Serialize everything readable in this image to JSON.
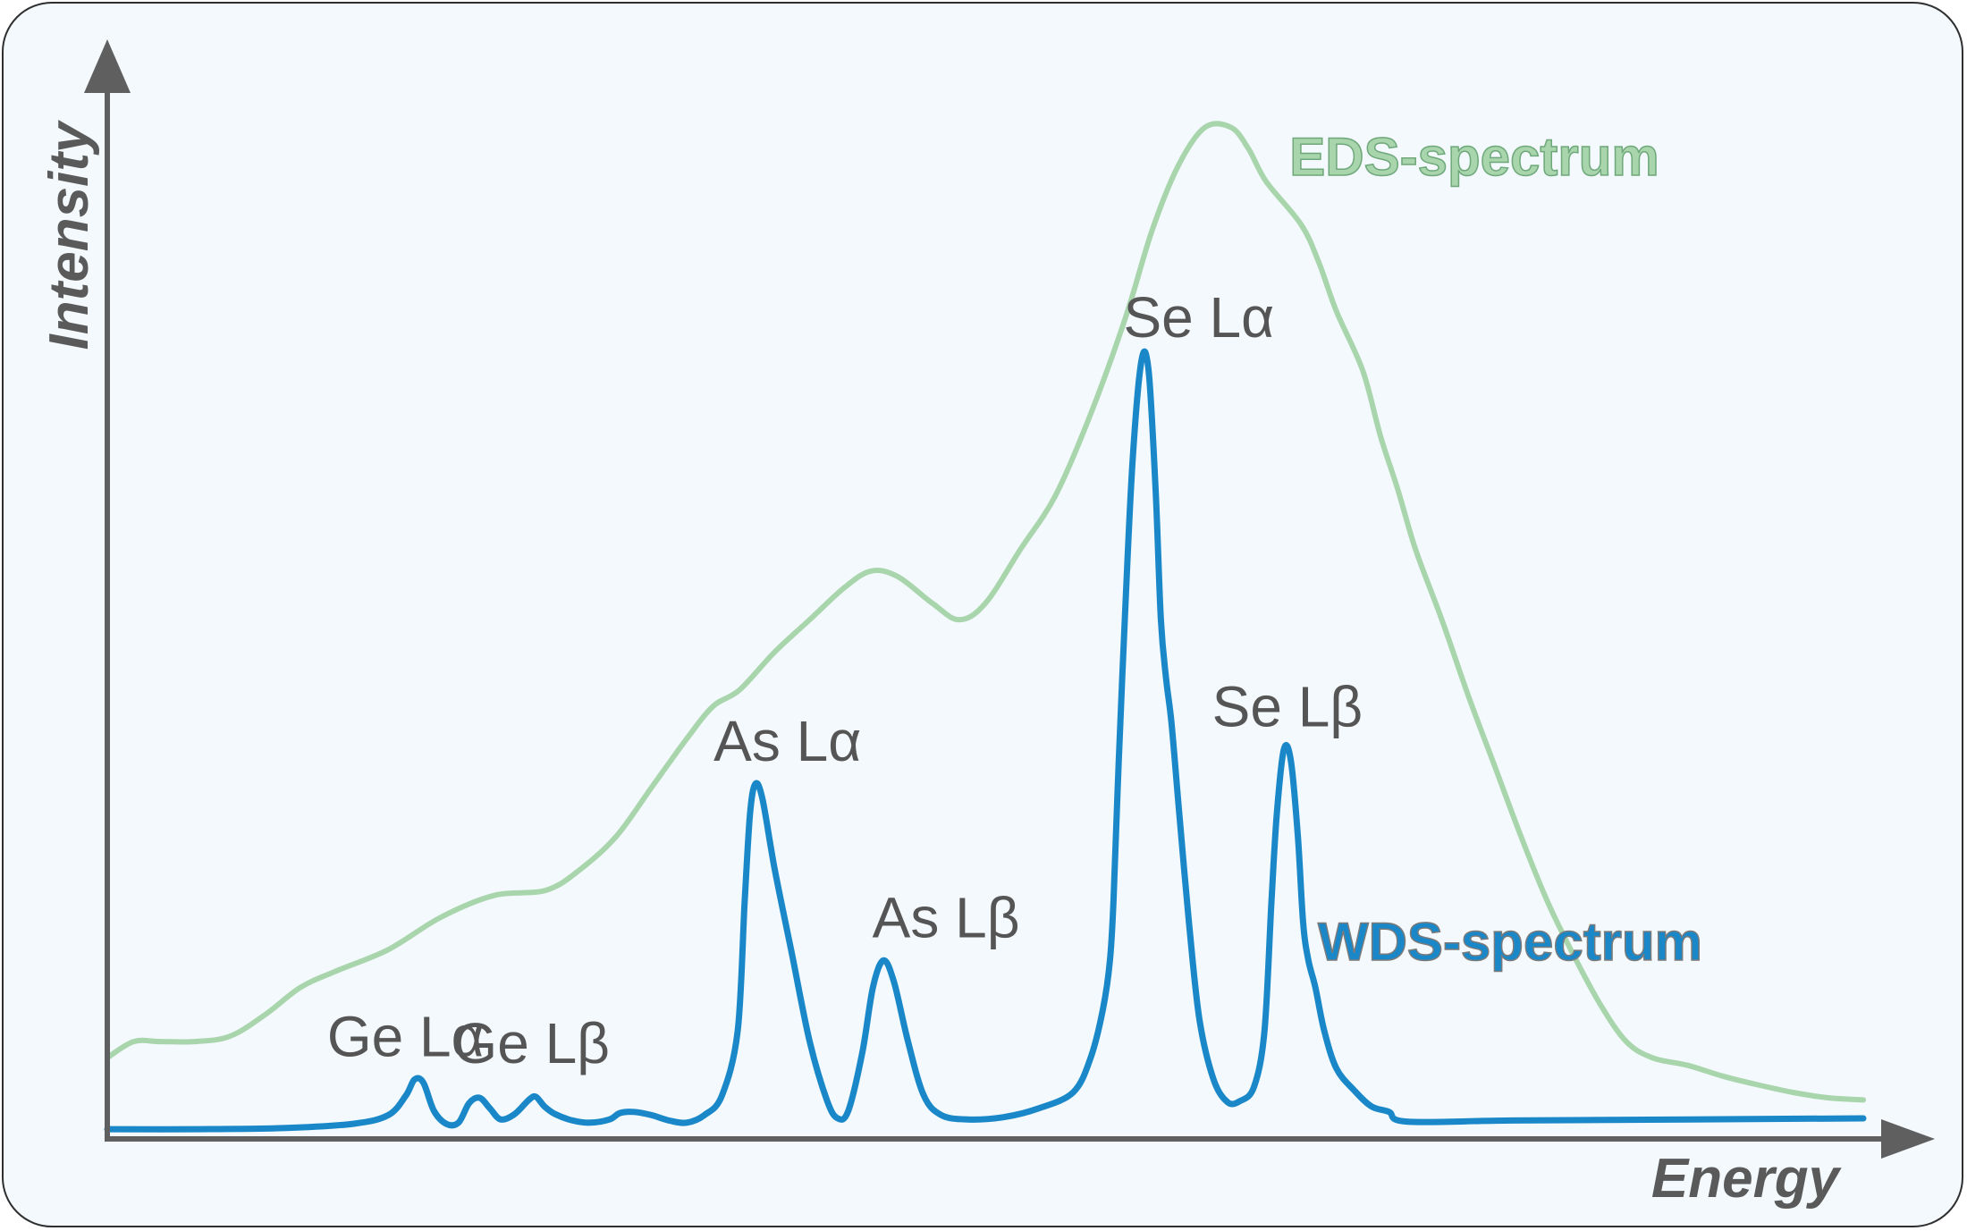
{
  "chart_data": {
    "type": "line",
    "xlabel": "Energy",
    "ylabel": "Intensity",
    "xlim": [
      0,
      100
    ],
    "ylim": [
      0,
      100
    ],
    "grid": false,
    "colors": {
      "eds": "#a8d5ac",
      "wds": "#1a88c8",
      "axis": "#5f5f5f",
      "text": "#555555",
      "background": "#f3f9fc"
    },
    "series": [
      {
        "name": "EDS-spectrum",
        "points": [
          [
            0,
            7.5
          ],
          [
            1.5,
            9.0
          ],
          [
            3.0,
            9.0
          ],
          [
            5.0,
            9.0
          ],
          [
            7.0,
            9.5
          ],
          [
            9.0,
            11.5
          ],
          [
            11.0,
            14.0
          ],
          [
            13.0,
            15.5
          ],
          [
            16.0,
            17.5
          ],
          [
            19.0,
            20.5
          ],
          [
            22.0,
            22.5
          ],
          [
            25.0,
            23.0
          ],
          [
            27.0,
            25.0
          ],
          [
            29.0,
            28.0
          ],
          [
            31.0,
            32.5
          ],
          [
            33.0,
            37.0
          ],
          [
            34.5,
            40.0
          ],
          [
            36.0,
            41.5
          ],
          [
            38.0,
            45.0
          ],
          [
            40.0,
            48.0
          ],
          [
            42.0,
            51.0
          ],
          [
            43.5,
            52.5
          ],
          [
            45.0,
            52.0
          ],
          [
            47.0,
            49.5
          ],
          [
            48.5,
            48.0
          ],
          [
            50.0,
            49.5
          ],
          [
            52.0,
            54.5
          ],
          [
            54.0,
            59.5
          ],
          [
            56.0,
            67.0
          ],
          [
            58.0,
            76.0
          ],
          [
            59.5,
            84.0
          ],
          [
            61.0,
            90.0
          ],
          [
            62.5,
            93.5
          ],
          [
            64.0,
            93.5
          ],
          [
            65.0,
            91.5
          ],
          [
            66.0,
            88.5
          ],
          [
            68.0,
            84.5
          ],
          [
            69.0,
            81.0
          ],
          [
            70.0,
            76.5
          ],
          [
            71.5,
            71.0
          ],
          [
            72.5,
            65.0
          ],
          [
            73.5,
            60.0
          ],
          [
            74.5,
            54.5
          ],
          [
            76.0,
            48.0
          ],
          [
            77.5,
            41.0
          ],
          [
            79.0,
            34.5
          ],
          [
            80.5,
            28.0
          ],
          [
            82.0,
            22.0
          ],
          [
            83.5,
            17.0
          ],
          [
            85.0,
            12.5
          ],
          [
            86.5,
            9.0
          ],
          [
            88.0,
            7.5
          ],
          [
            90.0,
            6.8
          ],
          [
            92.0,
            5.8
          ],
          [
            94.0,
            5.0
          ],
          [
            96.0,
            4.3
          ],
          [
            98.0,
            3.8
          ],
          [
            100.0,
            3.6
          ]
        ]
      },
      {
        "name": "WDS-spectrum",
        "points": [
          [
            0,
            0.9
          ],
          [
            5,
            0.9
          ],
          [
            10,
            1.0
          ],
          [
            14,
            1.4
          ],
          [
            16,
            2.2
          ],
          [
            17.0,
            4.0
          ],
          [
            17.5,
            5.5
          ],
          [
            18.0,
            5.2
          ],
          [
            18.6,
            2.6
          ],
          [
            19.3,
            1.4
          ],
          [
            20.0,
            1.5
          ],
          [
            20.6,
            3.3
          ],
          [
            21.2,
            3.8
          ],
          [
            21.8,
            2.8
          ],
          [
            22.4,
            1.8
          ],
          [
            23.2,
            2.3
          ],
          [
            24.0,
            3.6
          ],
          [
            24.4,
            3.9
          ],
          [
            24.9,
            3.0
          ],
          [
            25.5,
            2.3
          ],
          [
            26.5,
            1.7
          ],
          [
            27.5,
            1.5
          ],
          [
            28.6,
            1.8
          ],
          [
            29.2,
            2.4
          ],
          [
            30.0,
            2.5
          ],
          [
            31.0,
            2.2
          ],
          [
            32.0,
            1.7
          ],
          [
            33.0,
            1.5
          ],
          [
            34.0,
            2.2
          ],
          [
            35.0,
            4.0
          ],
          [
            35.9,
            10.0
          ],
          [
            36.3,
            22.0
          ],
          [
            36.6,
            30.0
          ],
          [
            36.9,
            32.8
          ],
          [
            37.3,
            31.5
          ],
          [
            38.0,
            25.0
          ],
          [
            39.0,
            17.0
          ],
          [
            40.0,
            9.0
          ],
          [
            41.0,
            3.5
          ],
          [
            41.6,
            1.9
          ],
          [
            42.2,
            2.6
          ],
          [
            43.0,
            8.0
          ],
          [
            43.6,
            14.0
          ],
          [
            44.2,
            16.5
          ],
          [
            44.8,
            14.5
          ],
          [
            45.6,
            9.0
          ],
          [
            46.5,
            4.0
          ],
          [
            47.5,
            2.2
          ],
          [
            49.0,
            1.8
          ],
          [
            51.0,
            2.0
          ],
          [
            53.0,
            2.8
          ],
          [
            55.0,
            4.3
          ],
          [
            56.0,
            7.5
          ],
          [
            56.7,
            12.0
          ],
          [
            57.1,
            16.5
          ],
          [
            57.3,
            22.0
          ],
          [
            57.6,
            35.0
          ],
          [
            58.0,
            50.0
          ],
          [
            58.4,
            63.0
          ],
          [
            58.9,
            72.0
          ],
          [
            59.3,
            71.0
          ],
          [
            59.7,
            60.0
          ],
          [
            60.0,
            48.0
          ],
          [
            60.3,
            42.5
          ],
          [
            60.6,
            38.5
          ],
          [
            61.0,
            31.0
          ],
          [
            61.6,
            20.0
          ],
          [
            62.2,
            11.0
          ],
          [
            63.0,
            5.5
          ],
          [
            63.8,
            3.4
          ],
          [
            64.5,
            3.5
          ],
          [
            65.3,
            4.8
          ],
          [
            65.9,
            10.0
          ],
          [
            66.3,
            22.0
          ],
          [
            66.6,
            30.0
          ],
          [
            67.0,
            36.0
          ],
          [
            67.4,
            35.0
          ],
          [
            67.8,
            28.0
          ],
          [
            68.1,
            20.0
          ],
          [
            68.4,
            16.5
          ],
          [
            68.8,
            14.0
          ],
          [
            69.3,
            10.0
          ],
          [
            70.0,
            6.5
          ],
          [
            71.0,
            4.5
          ],
          [
            72.0,
            3.0
          ],
          [
            73.0,
            2.5
          ],
          [
            74.0,
            1.6
          ],
          [
            80.0,
            1.7
          ],
          [
            90.0,
            1.8
          ],
          [
            100.0,
            1.9
          ]
        ]
      }
    ],
    "annotations": [
      {
        "text": "Ge Lα",
        "x": 17.5,
        "y": 5.5
      },
      {
        "text": "Ge Lβ",
        "x": 24.4,
        "y": 3.9
      },
      {
        "text": "As Lα",
        "x": 36.9,
        "y": 32.8
      },
      {
        "text": "As Lβ",
        "x": 44.2,
        "y": 16.5
      },
      {
        "text": "Se Lα",
        "x": 58.9,
        "y": 72.0
      },
      {
        "text": "Se Lβ",
        "x": 67.0,
        "y": 36.0
      }
    ]
  }
}
